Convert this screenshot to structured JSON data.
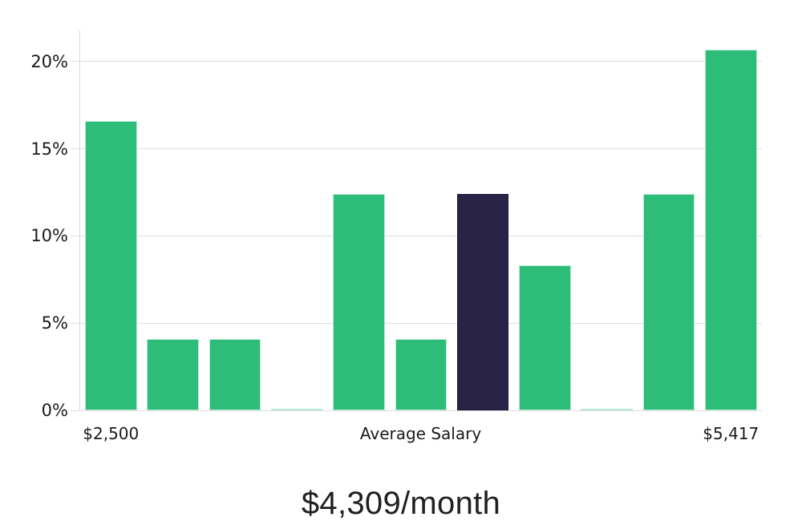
{
  "chart_data": {
    "type": "bar",
    "title": "$4,309/month",
    "values": [
      16.6,
      4.1,
      4.1,
      0.1,
      12.4,
      4.1,
      12.4,
      8.3,
      0.1,
      12.4,
      20.7
    ],
    "highlighted_index": 6,
    "y_ticks": [
      {
        "value": 0,
        "label": "0%"
      },
      {
        "value": 5,
        "label": "5%"
      },
      {
        "value": 10,
        "label": "10%"
      },
      {
        "value": 15,
        "label": "15%"
      },
      {
        "value": 20,
        "label": "20%"
      }
    ],
    "x_tick_labels": [
      {
        "label": "$2,500",
        "anchor": "bar-0"
      },
      {
        "label": "Average Salary",
        "anchor": "plot-center"
      },
      {
        "label": "$5,417",
        "anchor": "bar-10"
      }
    ],
    "ylim": [
      0,
      21.8
    ],
    "grid": "horizontal",
    "legend": "none",
    "colors": {
      "bar": "#2dbd78",
      "bar_border": "#b9ead3",
      "highlight": "#292347",
      "highlight_border": "#1c1736",
      "grid": "#dedede",
      "axis": "#d6d6d6",
      "tick_text": "#1a1a1a",
      "title_text": "#202020"
    }
  }
}
